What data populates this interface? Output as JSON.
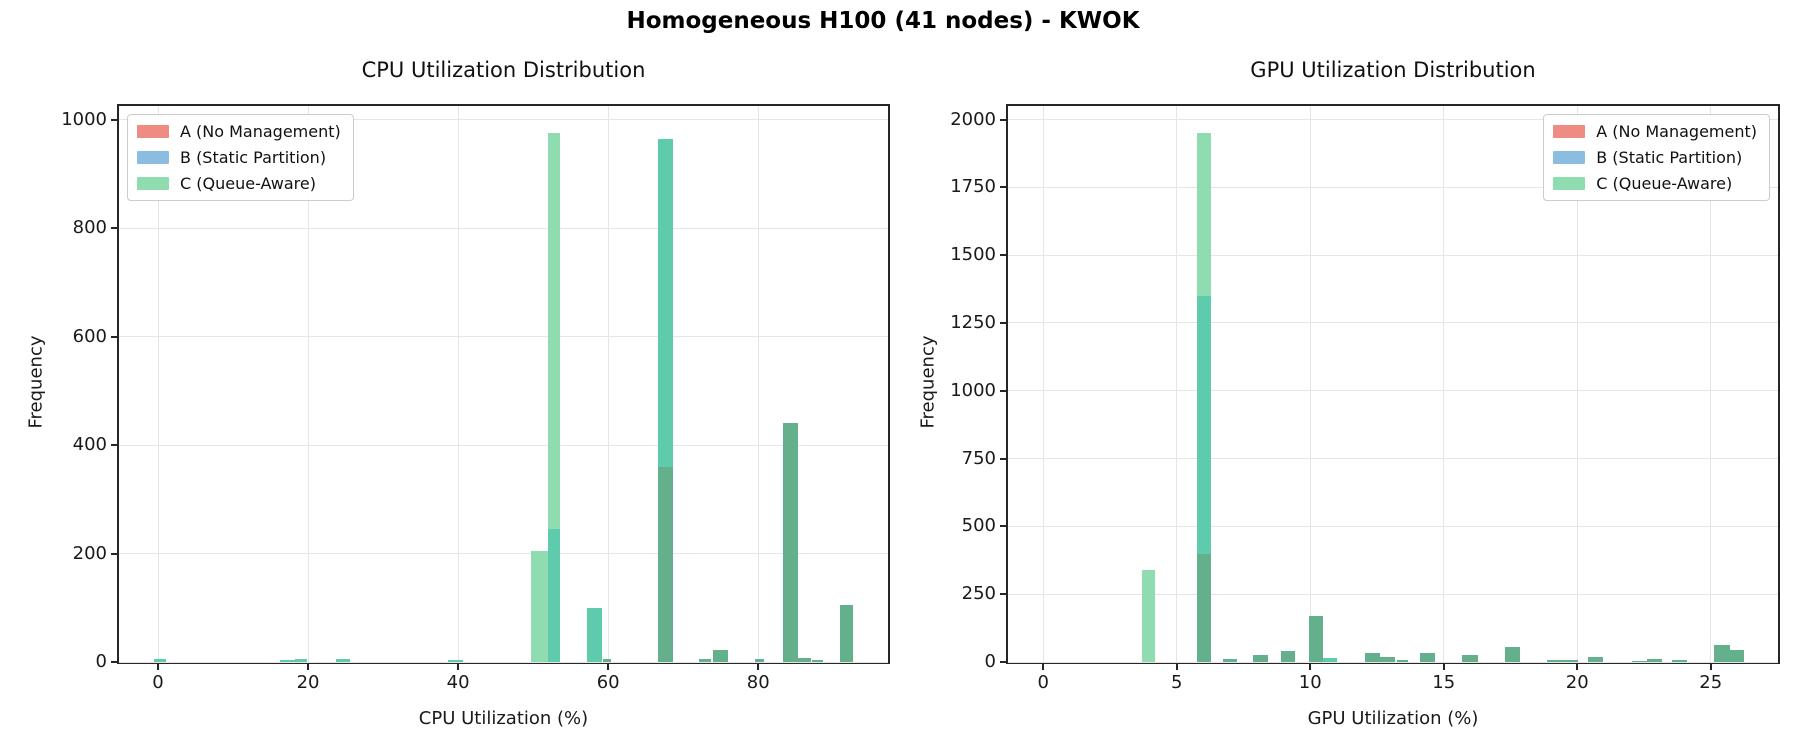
{
  "suptitle": "Homogeneous H100 (41 nodes) - KWOK",
  "palette": {
    "a_only": "#ee8b82",
    "b_only": "#8bbde1",
    "c_only": "#8fdcb0",
    "b_and_c": "#5fcbad",
    "a_b_c": "#64af8c"
  },
  "legend": {
    "items": [
      {
        "label": "A (No Management)",
        "color": "#ee8b82"
      },
      {
        "label": "B (Static Partition)",
        "color": "#8bbde1"
      },
      {
        "label": "C (Queue-Aware)",
        "color": "#8fdcb0"
      }
    ]
  },
  "chart_data": [
    {
      "type": "histogram",
      "title": "CPU Utilization Distribution",
      "xlabel": "CPU Utilization (%)",
      "ylabel": "Frequency",
      "xlim": [
        -5.2,
        97.3
      ],
      "ylim": [
        0,
        1025
      ],
      "xticks": [
        0,
        20,
        40,
        60,
        80
      ],
      "yticks": [
        0,
        200,
        400,
        600,
        800,
        1000
      ],
      "grid": true,
      "legend_position": "upper-left",
      "overlap_note": "overlaid translucent histograms; segment colors: c_only=C alone, b_and_c=B+C overlap, a_b_c=A+B+C overlap",
      "bars": [
        {
          "x": -0.5,
          "w": 1.6,
          "segments": [
            [
              5,
              "b_and_c"
            ]
          ]
        },
        {
          "x": 16.3,
          "w": 1.9,
          "segments": [
            [
              4,
              "b_and_c"
            ]
          ]
        },
        {
          "x": 18.2,
          "w": 1.6,
          "segments": [
            [
              5,
              "b_and_c"
            ]
          ]
        },
        {
          "x": 23.7,
          "w": 1.9,
          "segments": [
            [
              6,
              "b_and_c"
            ]
          ]
        },
        {
          "x": 38.7,
          "w": 2.0,
          "segments": [
            [
              3,
              "b_and_c"
            ]
          ]
        },
        {
          "x": 49.7,
          "w": 2.3,
          "segments": [
            [
              205,
              "c_only"
            ]
          ]
        },
        {
          "x": 52.0,
          "w": 1.6,
          "segments": [
            [
              245,
              "b_and_c"
            ],
            [
              975,
              "c_only"
            ]
          ]
        },
        {
          "x": 57.2,
          "w": 2.0,
          "segments": [
            [
              100,
              "b_and_c"
            ]
          ]
        },
        {
          "x": 59.3,
          "w": 1.1,
          "segments": [
            [
              5,
              "a_b_c"
            ]
          ]
        },
        {
          "x": 66.7,
          "w": 1.9,
          "segments": [
            [
              360,
              "a_b_c"
            ],
            [
              965,
              "b_and_c"
            ]
          ]
        },
        {
          "x": 72.1,
          "w": 1.6,
          "segments": [
            [
              5,
              "a_b_c"
            ]
          ]
        },
        {
          "x": 74.0,
          "w": 2.0,
          "segments": [
            [
              22,
              "a_b_c"
            ]
          ]
        },
        {
          "x": 79.6,
          "w": 1.2,
          "segments": [
            [
              5,
              "a_b_c"
            ]
          ]
        },
        {
          "x": 83.3,
          "w": 2.0,
          "segments": [
            [
              440,
              "a_b_c"
            ]
          ]
        },
        {
          "x": 85.3,
          "w": 1.7,
          "segments": [
            [
              8,
              "a_b_c"
            ]
          ]
        },
        {
          "x": 87.2,
          "w": 1.5,
          "segments": [
            [
              4,
              "a_b_c"
            ]
          ]
        },
        {
          "x": 90.9,
          "w": 1.7,
          "segments": [
            [
              105,
              "a_b_c"
            ]
          ]
        }
      ]
    },
    {
      "type": "histogram",
      "title": "GPU Utilization Distribution",
      "xlabel": "GPU Utilization (%)",
      "ylabel": "Frequency",
      "xlim": [
        -1.32,
        27.52
      ],
      "ylim": [
        0,
        2050
      ],
      "xticks": [
        0,
        5,
        10,
        15,
        20,
        25
      ],
      "yticks": [
        0,
        250,
        500,
        750,
        1000,
        1250,
        1500,
        1750,
        2000
      ],
      "grid": true,
      "legend_position": "upper-right",
      "overlap_note": "overlaid translucent histograms; segment colors: c_only=C alone, b_and_c=B+C overlap, a_b_c=A+B+C overlap",
      "bars": [
        {
          "x": 3.7,
          "w": 0.5,
          "segments": [
            [
              340,
              "c_only"
            ]
          ]
        },
        {
          "x": 5.76,
          "w": 0.52,
          "segments": [
            [
              400,
              "a_b_c"
            ],
            [
              1350,
              "b_and_c"
            ],
            [
              1950,
              "c_only"
            ]
          ]
        },
        {
          "x": 6.73,
          "w": 0.52,
          "segments": [
            [
              12,
              "a_b_c"
            ]
          ]
        },
        {
          "x": 7.85,
          "w": 0.56,
          "segments": [
            [
              25,
              "a_b_c"
            ]
          ]
        },
        {
          "x": 8.9,
          "w": 0.52,
          "segments": [
            [
              40,
              "a_b_c"
            ]
          ]
        },
        {
          "x": 9.95,
          "w": 0.52,
          "segments": [
            [
              170,
              "a_b_c"
            ]
          ]
        },
        {
          "x": 10.48,
          "w": 0.52,
          "segments": [
            [
              15,
              "b_and_c"
            ]
          ]
        },
        {
          "x": 12.05,
          "w": 0.56,
          "segments": [
            [
              32,
              "a_b_c"
            ]
          ]
        },
        {
          "x": 12.61,
          "w": 0.56,
          "segments": [
            [
              17,
              "a_b_c"
            ]
          ]
        },
        {
          "x": 13.25,
          "w": 0.4,
          "segments": [
            [
              8,
              "a_b_c"
            ]
          ]
        },
        {
          "x": 14.11,
          "w": 0.56,
          "segments": [
            [
              32,
              "a_b_c"
            ]
          ]
        },
        {
          "x": 15.68,
          "w": 0.6,
          "segments": [
            [
              26,
              "a_b_c"
            ]
          ]
        },
        {
          "x": 17.29,
          "w": 0.56,
          "segments": [
            [
              55,
              "a_b_c"
            ]
          ]
        },
        {
          "x": 18.86,
          "w": 0.6,
          "segments": [
            [
              7,
              "a_b_c"
            ]
          ]
        },
        {
          "x": 19.46,
          "w": 0.56,
          "segments": [
            [
              9,
              "a_b_c"
            ]
          ]
        },
        {
          "x": 20.4,
          "w": 0.56,
          "segments": [
            [
              20,
              "a_b_c"
            ]
          ]
        },
        {
          "x": 22.05,
          "w": 0.56,
          "segments": [
            [
              5,
              "a_b_c"
            ]
          ]
        },
        {
          "x": 22.61,
          "w": 0.56,
          "segments": [
            [
              12,
              "a_b_c"
            ]
          ]
        },
        {
          "x": 23.55,
          "w": 0.56,
          "segments": [
            [
              8,
              "a_b_c"
            ]
          ]
        },
        {
          "x": 25.12,
          "w": 0.6,
          "segments": [
            [
              64,
              "a_b_c"
            ]
          ]
        },
        {
          "x": 25.72,
          "w": 0.52,
          "segments": [
            [
              45,
              "a_b_c"
            ]
          ]
        }
      ]
    }
  ]
}
